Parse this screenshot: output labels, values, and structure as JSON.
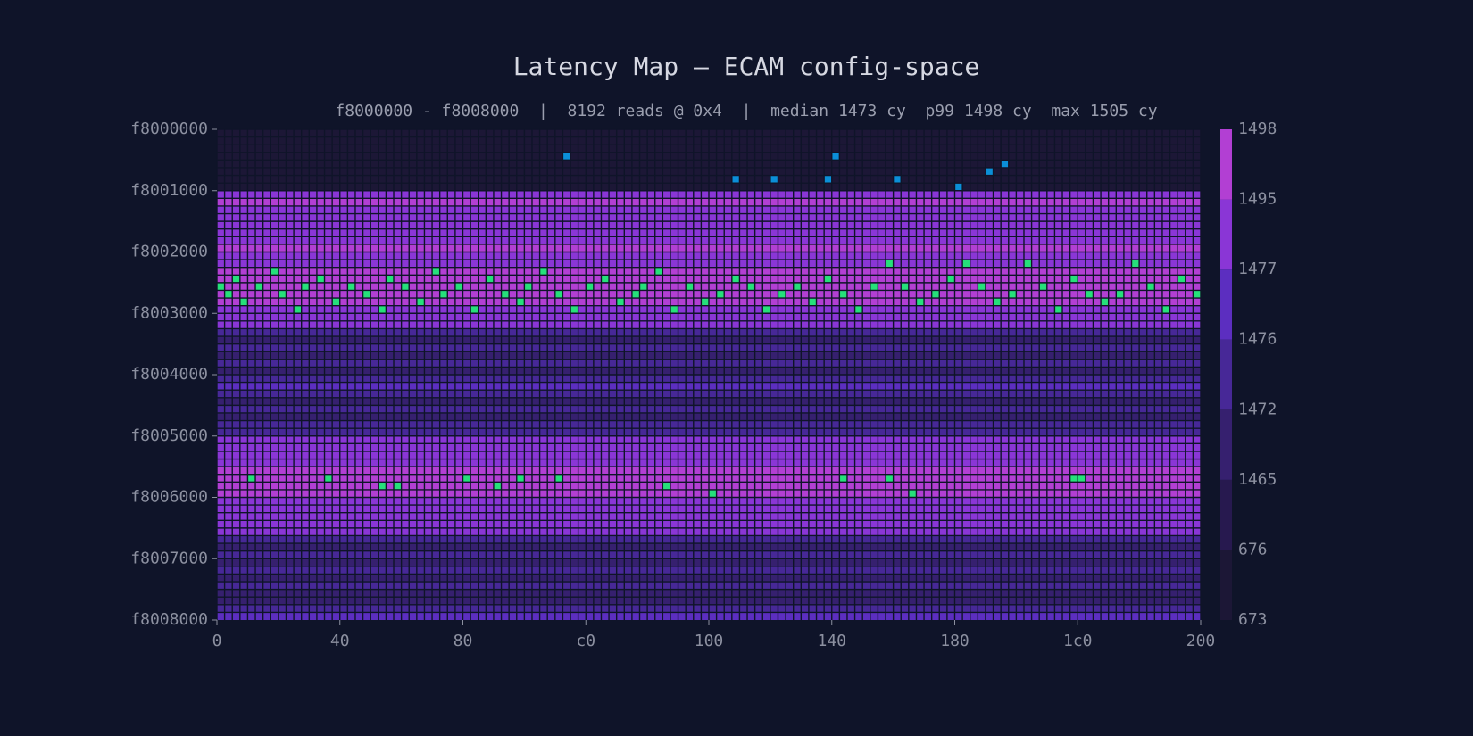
{
  "chart_data": {
    "type": "heatmap",
    "title": "Latency Map — ECAM config-space",
    "subtitle": "f8000000 - f8008000  |  8192 reads @ 0x4  |  median 1473 cy  p99 1498 cy  max 1505 cy",
    "xlim": [
      0,
      512
    ],
    "xticks": [
      0,
      {
        "value": 64,
        "label": "40"
      },
      {
        "value": 128,
        "label": "80"
      },
      {
        "value": 192,
        "label": "c0"
      },
      {
        "value": 256,
        "label": "100"
      },
      {
        "value": 320,
        "label": "140"
      },
      {
        "value": 384,
        "label": "180"
      },
      {
        "value": 448,
        "label": "1c0"
      },
      {
        "value": 512,
        "label": "200"
      }
    ],
    "ylim": [
      4160749568,
      4160782336
    ],
    "yticks": [
      {
        "value": 4160749568,
        "label": "f8000000"
      },
      {
        "value": 4160753664,
        "label": "f8001000"
      },
      {
        "value": 4160757760,
        "label": "f8002000"
      },
      {
        "value": 4160761856,
        "label": "f8003000"
      },
      {
        "value": 4160765952,
        "label": "f8004000"
      },
      {
        "value": 4160770048,
        "label": "f8005000"
      },
      {
        "value": 4160774144,
        "label": "f8006000"
      },
      {
        "value": 4160778240,
        "label": "f8007000"
      },
      {
        "value": 4160782336,
        "label": "f8008000"
      }
    ],
    "rows": {
      "y": [
        4160749568,
        4160750080,
        4160750592,
        4160751104,
        4160751616,
        4160752128,
        4160752640,
        4160753152,
        4160753664,
        4160754176,
        4160754688,
        4160755200,
        4160755712,
        4160756224,
        4160756736,
        4160757248,
        4160757760,
        4160758272,
        4160758784,
        4160759296,
        4160759808,
        4160760320,
        4160760832,
        4160761344,
        4160761856,
        4160762368,
        4160762880,
        4160763392,
        4160763904,
        4160764416,
        4160764928,
        4160765440,
        4160765952,
        4160766464,
        4160766976,
        4160767488,
        4160768000,
        4160768512,
        4160769024,
        4160769536,
        4160770048,
        4160770560,
        4160771072,
        4160771584,
        4160772096,
        4160772608,
        4160773120,
        4160773632,
        4160774144,
        4160774656,
        4160775168,
        4160775680,
        4160776192,
        4160776704,
        4160777216,
        4160777728,
        4160778240,
        4160778752,
        4160779264,
        4160779776,
        4160780288,
        4160780800,
        4160781312,
        4160781824
      ],
      "values": [
        674,
        675,
        675,
        674,
        675,
        675,
        675,
        675,
        1494,
        1496,
        1490,
        1493,
        1488,
        1492,
        1490,
        1495,
        1491,
        1494,
        1496,
        1495,
        1497,
        1496,
        1495,
        1494,
        1488,
        1478,
        1474,
        1471,
        1475,
        1470,
        1473,
        1469,
        1474,
        1476,
        1472,
        1470,
        1474,
        1468,
        1473,
        1475,
        1480,
        1486,
        1491,
        1494,
        1496,
        1497,
        1496,
        1495,
        1493,
        1490,
        1488,
        1482,
        1478,
        1474,
        1471,
        1475,
        1469,
        1473,
        1467,
        1474,
        1470,
        1466,
        1475,
        1476
      ]
    },
    "outliers": {
      "x": [
        0,
        4,
        8,
        12,
        20,
        28,
        32,
        40,
        44,
        52,
        60,
        68,
        76,
        84,
        88,
        96,
        104,
        112,
        116,
        124,
        132,
        140,
        148,
        156,
        160,
        168,
        176,
        184,
        192,
        200,
        208,
        216,
        220,
        228,
        236,
        244,
        252,
        260,
        268,
        276,
        284,
        292,
        300,
        308,
        316,
        324,
        332,
        340,
        348,
        356,
        364,
        372,
        380,
        388,
        396,
        404,
        412,
        420,
        428,
        436,
        444,
        452,
        460,
        468,
        476,
        484,
        492,
        500,
        508,
        16,
        56,
        84,
        92,
        128,
        144,
        156,
        176,
        232,
        256,
        324,
        348,
        360,
        444,
        448,
        180,
        320,
        268,
        288,
        316,
        352,
        384,
        400,
        408
      ],
      "y": [
        4160759808,
        4160760320,
        4160759296,
        4160760832,
        4160759808,
        4160758784,
        4160760320,
        4160761344,
        4160759808,
        4160759296,
        4160760832,
        4160759808,
        4160760320,
        4160761344,
        4160759296,
        4160759808,
        4160760832,
        4160758784,
        4160760320,
        4160759808,
        4160761344,
        4160759296,
        4160760320,
        4160760832,
        4160759808,
        4160758784,
        4160760320,
        4160761344,
        4160759808,
        4160759296,
        4160760832,
        4160760320,
        4160759808,
        4160758784,
        4160761344,
        4160759808,
        4160760832,
        4160760320,
        4160759296,
        4160759808,
        4160761344,
        4160760320,
        4160759808,
        4160760832,
        4160759296,
        4160760320,
        4160761344,
        4160759808,
        4160758272,
        4160759808,
        4160760832,
        4160760320,
        4160759296,
        4160758272,
        4160759808,
        4160760832,
        4160760320,
        4160758272,
        4160759808,
        4160761344,
        4160759296,
        4160760320,
        4160760832,
        4160760320,
        4160758272,
        4160759808,
        4160761344,
        4160759296,
        4160760320,
        4160772608,
        4160772608,
        4160773120,
        4160773120,
        4160772608,
        4160773120,
        4160772608,
        4160772608,
        4160773120,
        4160773632,
        4160772608,
        4160772608,
        4160773632,
        4160772608,
        4160772608,
        4160751104,
        4160751104,
        4160752640,
        4160752640,
        4160752640,
        4160752640,
        4160753152,
        4160752128,
        4160751616
      ],
      "values": [
        1502,
        1503,
        1501,
        1504,
        1502,
        1501,
        1503,
        1502,
        1501,
        1504,
        1502,
        1503,
        1501,
        1502,
        1505,
        1501,
        1502,
        1503,
        1501,
        1502,
        1504,
        1501,
        1503,
        1502,
        1501,
        1502,
        1503,
        1501,
        1502,
        1504,
        1501,
        1502,
        1503,
        1501,
        1502,
        1501,
        1503,
        1502,
        1504,
        1501,
        1502,
        1503,
        1501,
        1502,
        1501,
        1503,
        1502,
        1501,
        1504,
        1502,
        1501,
        1503,
        1502,
        1501,
        1502,
        1503,
        1501,
        1502,
        1504,
        1501,
        1502,
        1503,
        1501,
        1502,
        1501,
        1503,
        1502,
        1501,
        1502,
        1502,
        1501,
        1503,
        1502,
        1501,
        1502,
        1503,
        1501,
        1502,
        1501,
        1503,
        1502,
        1501,
        1502,
        1503,
        650,
        652,
        648,
        651,
        649,
        650,
        652,
        648,
        651
      ]
    },
    "colorbar": {
      "bounds": [
        673,
        676,
        1465,
        1472,
        1476,
        1477,
        1495,
        1498
      ],
      "colors": [
        "#1c1736",
        "#27194f",
        "#36206f",
        "#472897",
        "#5c2ec0",
        "#8a36d6",
        "#b23fd3"
      ],
      "under_color": "#0b8fd8",
      "over_color": "#26e07a"
    }
  }
}
